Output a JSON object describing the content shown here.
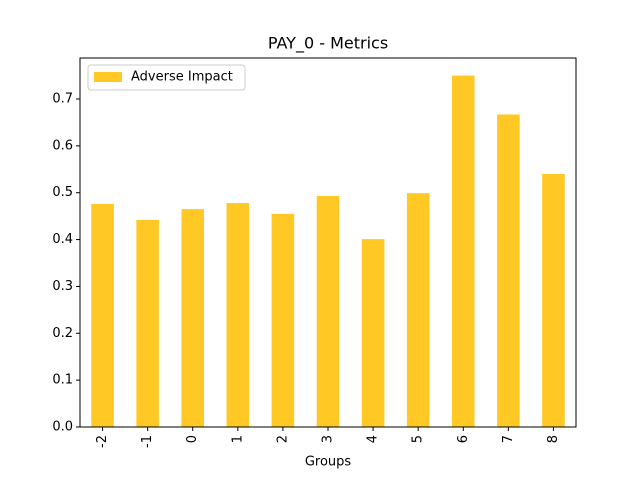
{
  "chart_data": {
    "type": "bar",
    "title": "PAY_0 - Metrics",
    "xlabel": "Groups",
    "categories": [
      "-2",
      "-1",
      "0",
      "1",
      "2",
      "3",
      "4",
      "5",
      "6",
      "7",
      "8"
    ],
    "series": [
      {
        "name": "Adverse Impact",
        "color": "#ffc825",
        "values": [
          0.476,
          0.442,
          0.465,
          0.478,
          0.455,
          0.493,
          0.401,
          0.499,
          0.75,
          0.667,
          0.54
        ]
      }
    ],
    "ylim": [
      0,
      0.7875
    ],
    "yticks": [
      {
        "value": 0,
        "label": "0.0"
      },
      0.1,
      0.2,
      0.3,
      0.4,
      0.5,
      0.6,
      0.7
    ],
    "grid": false,
    "legend": "upper left"
  }
}
